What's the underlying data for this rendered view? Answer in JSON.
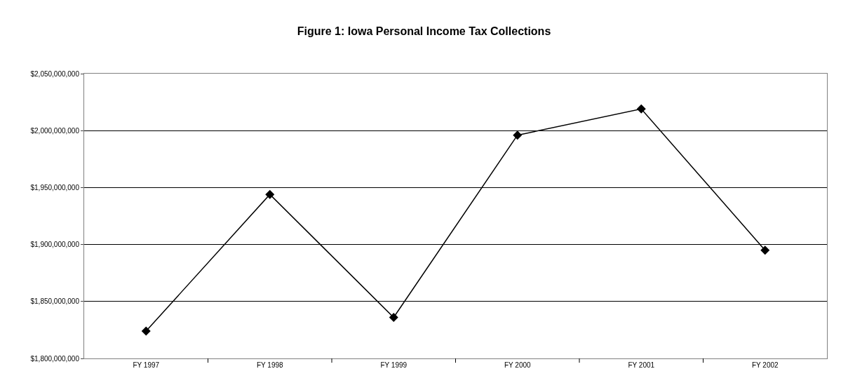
{
  "chart_data": {
    "type": "line",
    "title": "Figure 1: Iowa Personal Income Tax Collections",
    "categories": [
      "FY 1997",
      "FY 1998",
      "FY 1999",
      "FY 2000",
      "FY 2001",
      "FY 2002"
    ],
    "series": [
      {
        "color": "#000000",
        "values": [
          1824000000,
          1944000000,
          1836000000,
          1996000000,
          2019000000,
          1895000000
        ]
      }
    ],
    "ylim": [
      1800000000,
      2050000000
    ],
    "yticks": [
      {
        "value": 1800000000,
        "label": "$1,800,000,000"
      },
      {
        "value": 1850000000,
        "label": "$1,850,000,000"
      },
      {
        "value": 1900000000,
        "label": "$1,900,000,000"
      },
      {
        "value": 1950000000,
        "label": "$1,950,000,000"
      },
      {
        "value": 2000000000,
        "label": "$2,000,000,000"
      },
      {
        "value": 2050000000,
        "label": "$2,050,000,000"
      }
    ],
    "grid": "y",
    "legend": false,
    "marker": "diamond",
    "line_style": "solid"
  }
}
